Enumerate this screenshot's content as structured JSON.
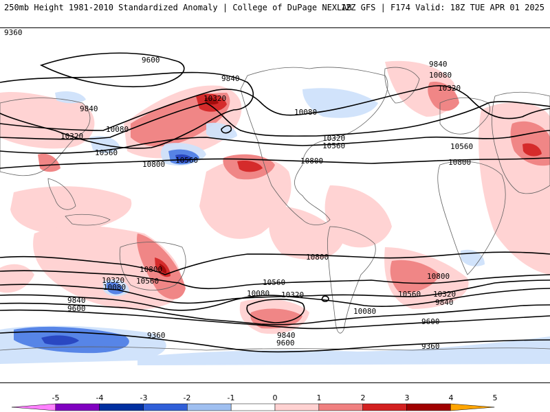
{
  "header": {
    "left": "250mb Height 1981-2010 Standardized Anomaly | College of DuPage NEXLAB",
    "right": "12Z GFS | F174 Valid: 18Z TUE APR 01 2025"
  },
  "colors": {
    "anom_pos_1": "#ffd1d1",
    "anom_pos_2": "#f08080",
    "anom_pos_3": "#d32020",
    "anom_pos_4": "#a00000",
    "anom_neg_1": "#cfe2fb",
    "anom_neg_2": "#4f7fe6",
    "anom_neg_3": "#1f3fbf",
    "land_line": "#606060",
    "contour": "#000000"
  },
  "contour_labels": [
    {
      "id": "c1",
      "text": "9600"
    },
    {
      "id": "c2",
      "text": "9840"
    },
    {
      "id": "c3",
      "text": "9840"
    },
    {
      "id": "c4",
      "text": "10080"
    },
    {
      "id": "c5",
      "text": "10320"
    },
    {
      "id": "c6",
      "text": "10560"
    },
    {
      "id": "c7",
      "text": "10800"
    },
    {
      "id": "c8",
      "text": "10560"
    },
    {
      "id": "c9",
      "text": "10320"
    },
    {
      "id": "c10",
      "text": "10080"
    },
    {
      "id": "c11",
      "text": "10320"
    },
    {
      "id": "c12",
      "text": "10560"
    },
    {
      "id": "c13",
      "text": "10800"
    },
    {
      "id": "c14",
      "text": "9840"
    },
    {
      "id": "c15",
      "text": "10080"
    },
    {
      "id": "c16",
      "text": "10320"
    },
    {
      "id": "c17",
      "text": "10560"
    },
    {
      "id": "c18",
      "text": "10800"
    },
    {
      "id": "c19",
      "text": "10800"
    },
    {
      "id": "c20",
      "text": "10800"
    },
    {
      "id": "c21",
      "text": "10320"
    },
    {
      "id": "c22",
      "text": "10080"
    },
    {
      "id": "c23",
      "text": "10560"
    },
    {
      "id": "c24",
      "text": "9840"
    },
    {
      "id": "c25",
      "text": "9600"
    },
    {
      "id": "c26",
      "text": "10560"
    },
    {
      "id": "c27",
      "text": "10080"
    },
    {
      "id": "c28",
      "text": "10320"
    },
    {
      "id": "c29",
      "text": "10080"
    },
    {
      "id": "c30",
      "text": "9840"
    },
    {
      "id": "c31",
      "text": "9600"
    },
    {
      "id": "c32",
      "text": "9360"
    },
    {
      "id": "c33",
      "text": "10800"
    },
    {
      "id": "c34",
      "text": "10560"
    },
    {
      "id": "c35",
      "text": "10320"
    },
    {
      "id": "c36",
      "text": "9840"
    },
    {
      "id": "c37",
      "text": "9600"
    },
    {
      "id": "c38",
      "text": "9360"
    },
    {
      "id": "c39",
      "text": "9360"
    }
  ],
  "colorbar": {
    "ticks": [
      "-5",
      "-4",
      "-3",
      "-2",
      "-1",
      "0",
      "1",
      "2",
      "3",
      "4",
      "5"
    ],
    "colors": [
      "#ff80ff",
      "#8000c0",
      "#0030a0",
      "#2f5fd8",
      "#9fbff0",
      "#ffffff",
      "#ffd1d1",
      "#f08080",
      "#d32020",
      "#a00000",
      "#ffa500"
    ]
  }
}
